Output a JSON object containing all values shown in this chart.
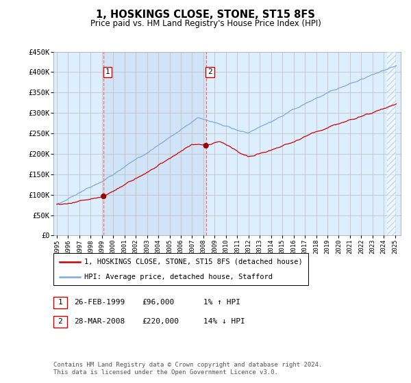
{
  "title": "1, HOSKINGS CLOSE, STONE, ST15 8FS",
  "subtitle": "Price paid vs. HM Land Registry's House Price Index (HPI)",
  "legend_line1": "1, HOSKINGS CLOSE, STONE, ST15 8FS (detached house)",
  "legend_line2": "HPI: Average price, detached house, Stafford",
  "footer": "Contains HM Land Registry data © Crown copyright and database right 2024.\nThis data is licensed under the Open Government Licence v3.0.",
  "sale1_date": "26-FEB-1999",
  "sale1_price": "£96,000",
  "sale1_hpi": "1% ↑ HPI",
  "sale2_date": "28-MAR-2008",
  "sale2_price": "£220,000",
  "sale2_hpi": "14% ↓ HPI",
  "sale1_x": 1999.15,
  "sale1_y": 96000,
  "sale2_x": 2008.23,
  "sale2_y": 220000,
  "ylim_min": 0,
  "ylim_max": 450000,
  "xlim_start": 1994.7,
  "xlim_end": 2025.5,
  "line_color_red": "#cc0000",
  "line_color_blue": "#7aaadd",
  "bg_color": "#ddeeff",
  "shade_color": "#cce0f5",
  "grid_color": "#bbbbbb",
  "sale_marker_color": "#990000",
  "vline_color": "#ff6666",
  "box_edge_color": "#cc0000",
  "hatch_color": "#aabbdd",
  "yticks": [
    0,
    50000,
    100000,
    150000,
    200000,
    250000,
    300000,
    350000,
    400000,
    450000
  ],
  "ytick_labels": [
    "£0",
    "£50K",
    "£100K",
    "£150K",
    "£200K",
    "£250K",
    "£300K",
    "£350K",
    "£400K",
    "£450K"
  ],
  "xtick_years": [
    1995,
    1996,
    1997,
    1998,
    1999,
    2000,
    2001,
    2002,
    2003,
    2004,
    2005,
    2006,
    2007,
    2008,
    2009,
    2010,
    2011,
    2012,
    2013,
    2014,
    2015,
    2016,
    2017,
    2018,
    2019,
    2020,
    2021,
    2022,
    2023,
    2024,
    2025
  ]
}
